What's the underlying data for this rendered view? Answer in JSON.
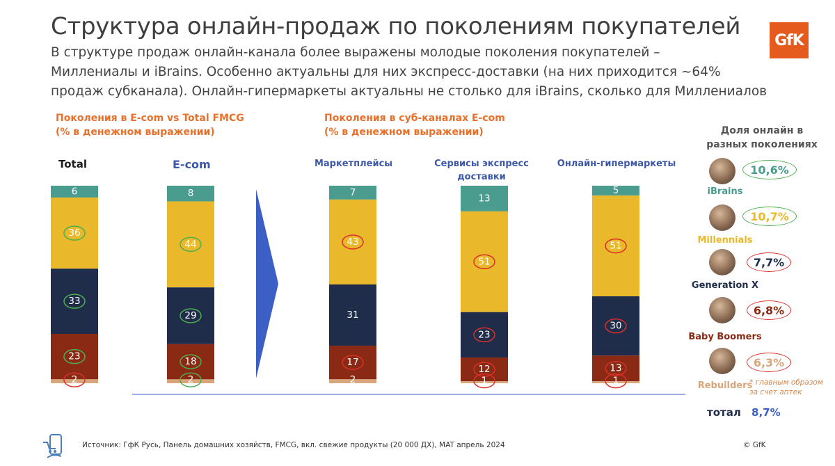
{
  "header": {
    "title": "Структура онлайн-продаж по поколениям покупателей",
    "subtitle_lines": [
      "В структуре продаж онлайн-канала более выражены молодые поколения покупателей –",
      "Миллениалы и iBrains. Особенно актуальны для них экспресс-доставки (на них приходится ~64%",
      "продаж субканала). Онлайн-гипермаркеты актуальны не столько для iBrains, сколько для Миллениалов"
    ],
    "logo_text": "GfK"
  },
  "sections": {
    "left_title_1": "Поколения в E-com vs Total FMCG",
    "left_title_2": "(% в денежном выражении)",
    "mid_title_1": "Поколения в суб-каналах E-com",
    "mid_title_2": "(% в денежном выражении)"
  },
  "colors": {
    "ibrains": "#4a9c8f",
    "millennials": "#e9b92b",
    "genx": "#1f2d4b",
    "boomers": "#8a2a14",
    "rebuilders": "#d9a57a",
    "oval_green": "#4caf50",
    "oval_red": "#d9302a",
    "arrow": "#3c5fc5"
  },
  "chart_data": {
    "type": "bar",
    "stacked": true,
    "unit": "%",
    "categories": [
      "Total",
      "E-com",
      "Маркетплейсы",
      "Сервисы экспресс доставки",
      "Онлайн-гипермаркеты"
    ],
    "series": [
      {
        "name": "iBrains",
        "values": [
          6,
          8,
          7,
          13,
          5
        ]
      },
      {
        "name": "Millennials",
        "values": [
          36,
          44,
          43,
          51,
          51
        ]
      },
      {
        "name": "Generation X",
        "values": [
          33,
          29,
          31,
          23,
          30
        ]
      },
      {
        "name": "Baby Boomers",
        "values": [
          23,
          18,
          17,
          12,
          13
        ]
      },
      {
        "name": "Rebuilders",
        "values": [
          2,
          2,
          2,
          1,
          1
        ]
      }
    ],
    "oval_highlights": [
      [
        "none",
        "none",
        "none",
        "none",
        "none"
      ],
      [
        "green",
        "green",
        "red",
        "red",
        "red"
      ],
      [
        "green",
        "green",
        "none",
        "red",
        "red"
      ],
      [
        "green",
        "green",
        "red",
        "red",
        "red"
      ],
      [
        "red",
        "green",
        "none",
        "red",
        "red"
      ]
    ],
    "col_labels": {
      "total": "Total",
      "ecom": "E-com",
      "marketplaces": "Маркетплейсы",
      "express_1": "Сервисы экспресс",
      "express_2": "доставки",
      "hyper": "Онлайн-гипермаркеты"
    }
  },
  "online_share": {
    "heading_1": "Доля онлайн в",
    "heading_2": "разных поколениях",
    "items": [
      {
        "name": "iBrains",
        "value": "10,6%",
        "name_color": "#4a9c8f",
        "oval": "green",
        "icon": "ibrains-photo-icon"
      },
      {
        "name": "Millennials",
        "value": "10,7%",
        "name_color": "#e9b92b",
        "oval": "green",
        "icon": "millennials-photo-icon"
      },
      {
        "name": "Generation X",
        "value": "7,7%",
        "name_color": "#1f2d4b",
        "oval": "red",
        "icon": "genx-photo-icon"
      },
      {
        "name": "Baby Boomers",
        "value": "6,8%",
        "name_color": "#8a2a14",
        "oval": "red",
        "icon": "boomers-photo-icon"
      },
      {
        "name": "Rebuilders",
        "value": "6,3%",
        "name_color": "#d9a57a",
        "oval": "red",
        "icon": "rebuilders-photo-icon"
      }
    ],
    "footnote_1": "* главным образом",
    "footnote_2": "за счет аптек",
    "total_label": "тотал",
    "total_value": "8,7%"
  },
  "footer": {
    "source": "Источник: ГфК Русь, Панель домашних хозяйств, FMCG, вкл. свежие продукты (20 000 ДХ), MAT апрель 2024",
    "copyright": "© GfK"
  }
}
